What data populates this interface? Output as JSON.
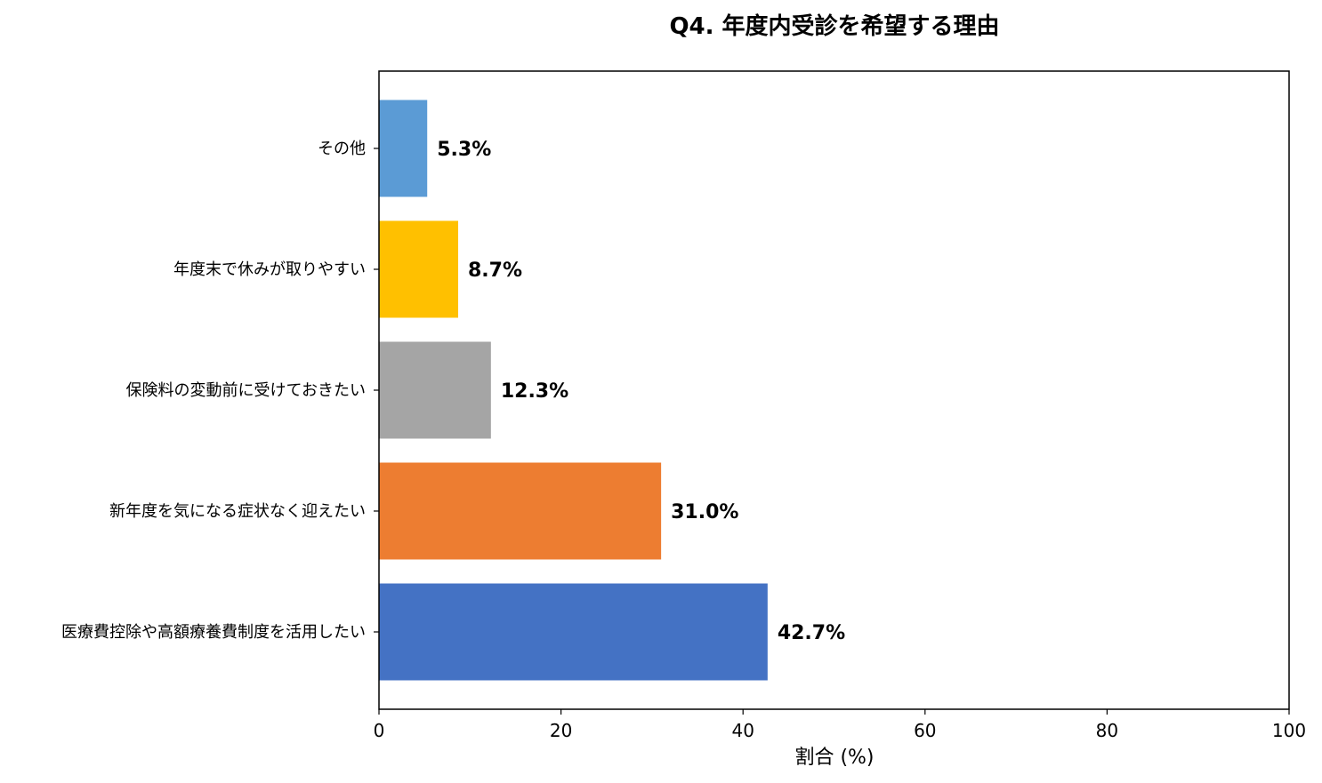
{
  "chart_data": {
    "type": "bar",
    "orientation": "horizontal",
    "title": "Q4. 年度内受診を希望する理由",
    "xlabel": "割合 (%)",
    "ylabel": "",
    "xlim": [
      0,
      100
    ],
    "x_ticks": [
      0,
      20,
      40,
      60,
      80,
      100
    ],
    "grid": false,
    "categories": [
      "医療費控除や高額療養費制度を活用したい",
      "新年度を気になる症状なく迎えたい",
      "保険料の変動前に受けておきたい",
      "年度末で休みが取りやすい",
      "その他"
    ],
    "values": [
      42.7,
      31.0,
      12.3,
      8.7,
      5.3
    ],
    "value_labels": [
      "42.7%",
      "31.0%",
      "12.3%",
      "8.7%",
      "5.3%"
    ],
    "colors": [
      "#4472C4",
      "#ED7D31",
      "#A5A5A5",
      "#FFC000",
      "#5B9BD5"
    ]
  }
}
